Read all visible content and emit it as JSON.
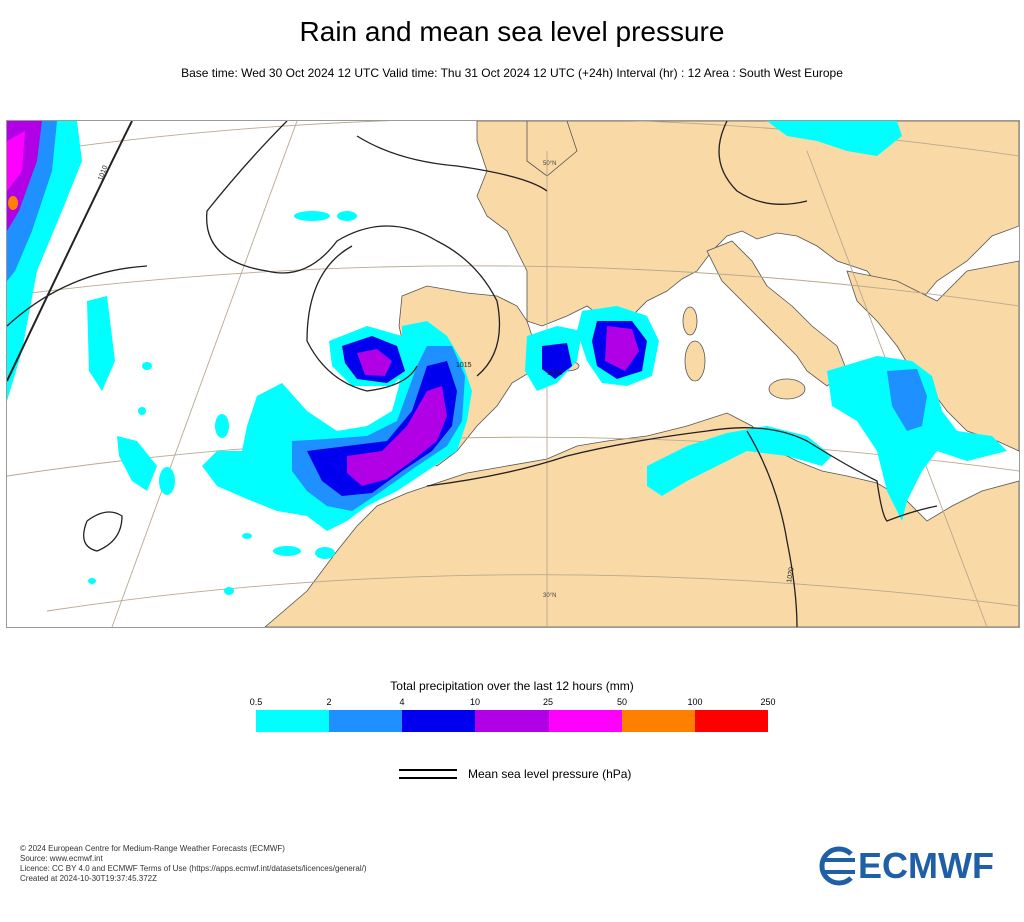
{
  "header": {
    "title": "Rain and mean sea level pressure",
    "subtitle": "Base time: Wed 30 Oct 2024 12 UTC Valid time: Thu 31 Oct 2024 12 UTC (+24h) Interval (hr) : 12 Area : South West Europe"
  },
  "map": {
    "labels": {
      "lat_top": "50°N",
      "lat_bottom": "30°N",
      "isobar_1010": "1010",
      "isobar_1020": "1020",
      "isobar_1015_iberia": "1015",
      "isobar_1015_med": "1015"
    },
    "colors": {
      "land": "#f9d9a6",
      "sea": "#ffffff",
      "graticule": "#b9a88f",
      "isobar": "#222222"
    }
  },
  "legend": {
    "title": "Total precipitation over the last 12 hours (mm)",
    "ticks": [
      "0.5",
      "2",
      "4",
      "10",
      "25",
      "50",
      "100",
      "250"
    ],
    "colors": [
      "#00ffff",
      "#1e90ff",
      "#0000ee",
      "#b200e6",
      "#ff00ff",
      "#ff8000",
      "#ff0000"
    ]
  },
  "mslp_key": {
    "label": "Mean sea level pressure (hPa)"
  },
  "footer": {
    "lines": [
      "© 2024 European Centre for Medium-Range Weather Forecasts (ECMWF)",
      "Source: www.ecmwf.int",
      "Licence: CC BY 4.0 and ECMWF Terms of Use (https://apps.ecmwf.int/datasets/licences/general/)",
      "Created at 2024-10-30T19:37:45.372Z"
    ]
  },
  "logo": {
    "text": "ECMWF",
    "color": "#1f5fa8"
  }
}
